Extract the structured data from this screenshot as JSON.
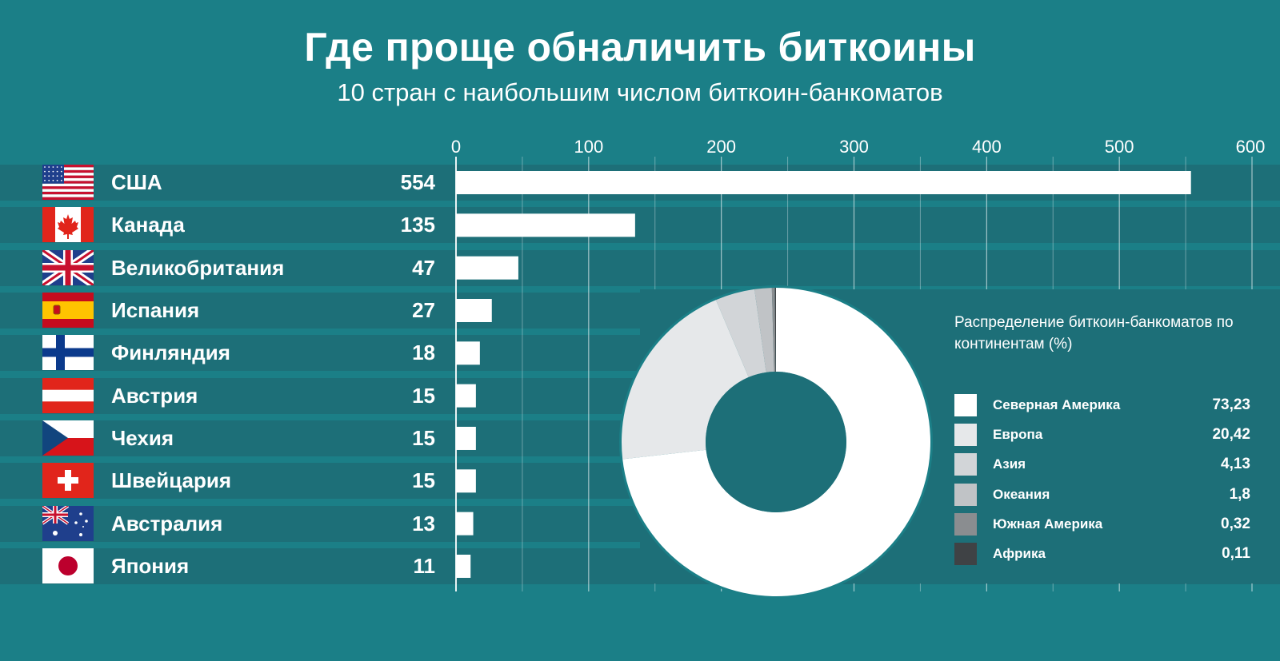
{
  "header": {
    "title": "Где проще обналичить биткоины",
    "subtitle": "10 стран с наибольшим числом биткоин-банкоматов"
  },
  "colors": {
    "background": "#1b7f87",
    "row_band": "#1d6f78",
    "bar": "#ffffff",
    "grid": "#ffffff"
  },
  "chart_data": [
    {
      "type": "bar",
      "orientation": "horizontal",
      "title": "10 стран с наибольшим числом биткоин-банкоматов",
      "categories": [
        "США",
        "Канада",
        "Великобритания",
        "Испания",
        "Финляндия",
        "Австрия",
        "Чехия",
        "Швейцария",
        "Австралия",
        "Япония"
      ],
      "flags": [
        "us-flag-icon",
        "canada-flag-icon",
        "uk-flag-icon",
        "spain-flag-icon",
        "finland-flag-icon",
        "austria-flag-icon",
        "czech-flag-icon",
        "switzerland-flag-icon",
        "australia-flag-icon",
        "japan-flag-icon"
      ],
      "values": [
        554,
        135,
        47,
        27,
        18,
        15,
        15,
        15,
        13,
        11
      ],
      "xlim": [
        0,
        600
      ],
      "ticks": [
        0,
        100,
        200,
        300,
        400,
        500,
        600
      ],
      "tick_labels": [
        "0",
        "100",
        "200",
        "300",
        "400",
        "500",
        "600"
      ],
      "axis_position": "top",
      "grid": true
    },
    {
      "type": "pie",
      "variant": "donut",
      "title": "Распределение биткоин-банкоматов по континентам (%)",
      "labels": [
        "Северная Америка",
        "Европа",
        "Азия",
        "Океания",
        "Южная Америка",
        "Африка"
      ],
      "values": [
        73.23,
        20.42,
        4.13,
        1.8,
        0.32,
        0.11
      ],
      "value_labels": [
        "73,23",
        "20,42",
        "4,13",
        "1,8",
        "0,32",
        "0,11"
      ],
      "colors": [
        "#ffffff",
        "#e6e8ea",
        "#d2d5d8",
        "#c0c3c6",
        "#8a8d90",
        "#3f4245"
      ],
      "legend_position": "right"
    }
  ]
}
